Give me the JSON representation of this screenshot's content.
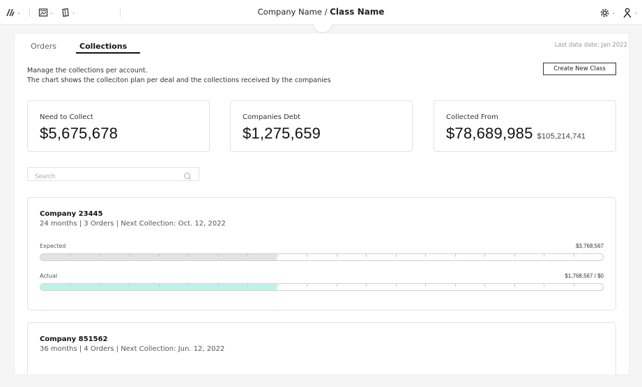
{
  "header": {
    "company": "Company Name",
    "separator": " / ",
    "class_name": "Class Name",
    "left_icons": [
      "brand-logo-icon",
      "image-gallery-icon",
      "book-icon"
    ],
    "right_icons": [
      "gear-icon",
      "user-icon"
    ],
    "caret": "⌄"
  },
  "tabs": [
    {
      "label": "Orders",
      "active": false
    },
    {
      "label": "Collections",
      "active": true
    }
  ],
  "last_data_date": "Last data date: Jan 2022",
  "description": {
    "line1": "Manage the collections per account.",
    "line2": "The chart shows the colleciton plan per deal and the collections received by the companies"
  },
  "create_button": "Create New Class",
  "stats": [
    {
      "label": "Need to Collect",
      "value": "$5,675,678"
    },
    {
      "label": "Companies Debt",
      "value": "$1,275,659"
    },
    {
      "label": "Collected From",
      "value": "$78,689,985",
      "sub": "$105,214,741"
    }
  ],
  "search": {
    "placeholder": "Search",
    "value": ""
  },
  "companies": [
    {
      "name": "Company 23445",
      "meta": "24 months | 3 Orders | Next Collection: Oct. 12, 2022",
      "expected": {
        "label": "Expected",
        "amount": "$3,768,567",
        "progress": 0.42
      },
      "actual": {
        "label": "Actual",
        "amount": "$1,768,567 / $0",
        "progress": 0.42
      }
    },
    {
      "name": "Company 851562",
      "meta": "36 months | 4 Orders | Next Collection: Jun. 12, 2022"
    }
  ],
  "colors": {
    "expected_fill": "#e3e3e3",
    "actual_fill": "#bff3ea",
    "accent": "#111111"
  }
}
